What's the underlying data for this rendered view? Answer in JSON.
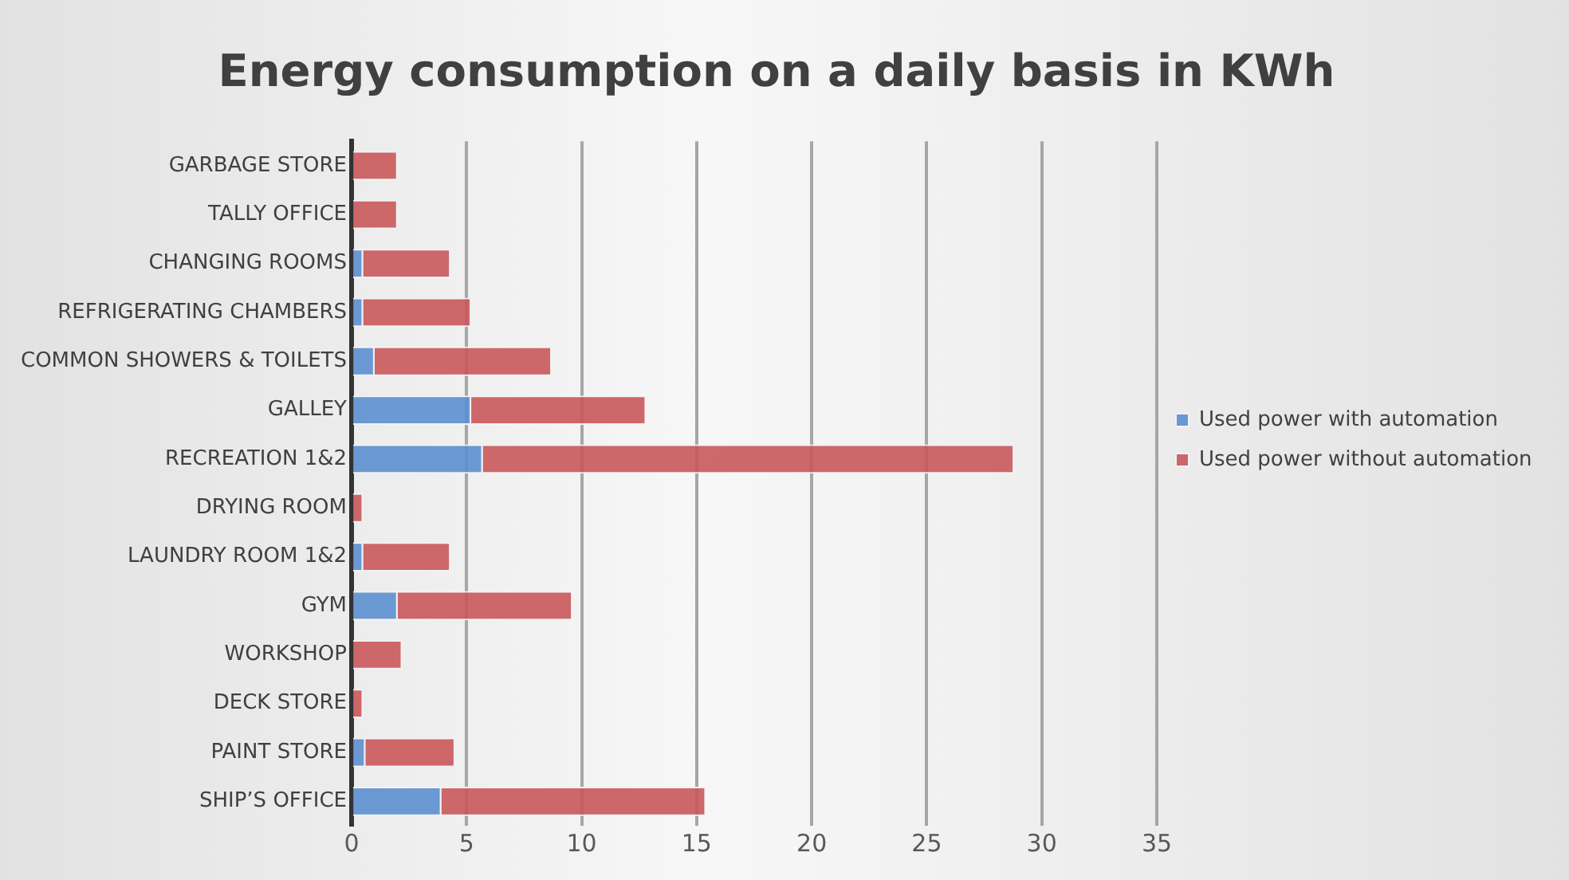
{
  "chart_data": {
    "type": "bar",
    "orientation": "horizontal",
    "stacked": true,
    "title": "Energy consumption on a daily basis in KWh",
    "categories": [
      "GARBAGE STORE",
      "TALLY OFFICE",
      "CHANGING ROOMS",
      "REFRIGERATING CHAMBERS",
      "COMMON SHOWERS & TOILETS",
      "GALLEY",
      "RECREATION 1&2",
      "DRYING ROOM",
      "LAUNDRY ROOM 1&2",
      "GYM",
      "WORKSHOP",
      "DECK STORE",
      "PAINT STORE",
      "SHIP’S OFFICE"
    ],
    "series": [
      {
        "name": "Used power with automation",
        "color": "#5b8fd0",
        "values": [
          0,
          0,
          0.5,
          0.5,
          1,
          5.2,
          5.7,
          0,
          0.5,
          2,
          0,
          0,
          0.6,
          3.9
        ]
      },
      {
        "name": "Used power without automation",
        "color": "#c9585a",
        "values": [
          2,
          2,
          3.8,
          4.7,
          7.7,
          7.6,
          23.1,
          0.5,
          3.8,
          7.6,
          2.2,
          0.5,
          3.9,
          11.5
        ]
      }
    ],
    "xlim": [
      0,
      35
    ],
    "xticks": [
      0,
      5,
      10,
      15,
      20,
      25,
      30,
      35
    ],
    "grid": "x",
    "legend": "right"
  }
}
